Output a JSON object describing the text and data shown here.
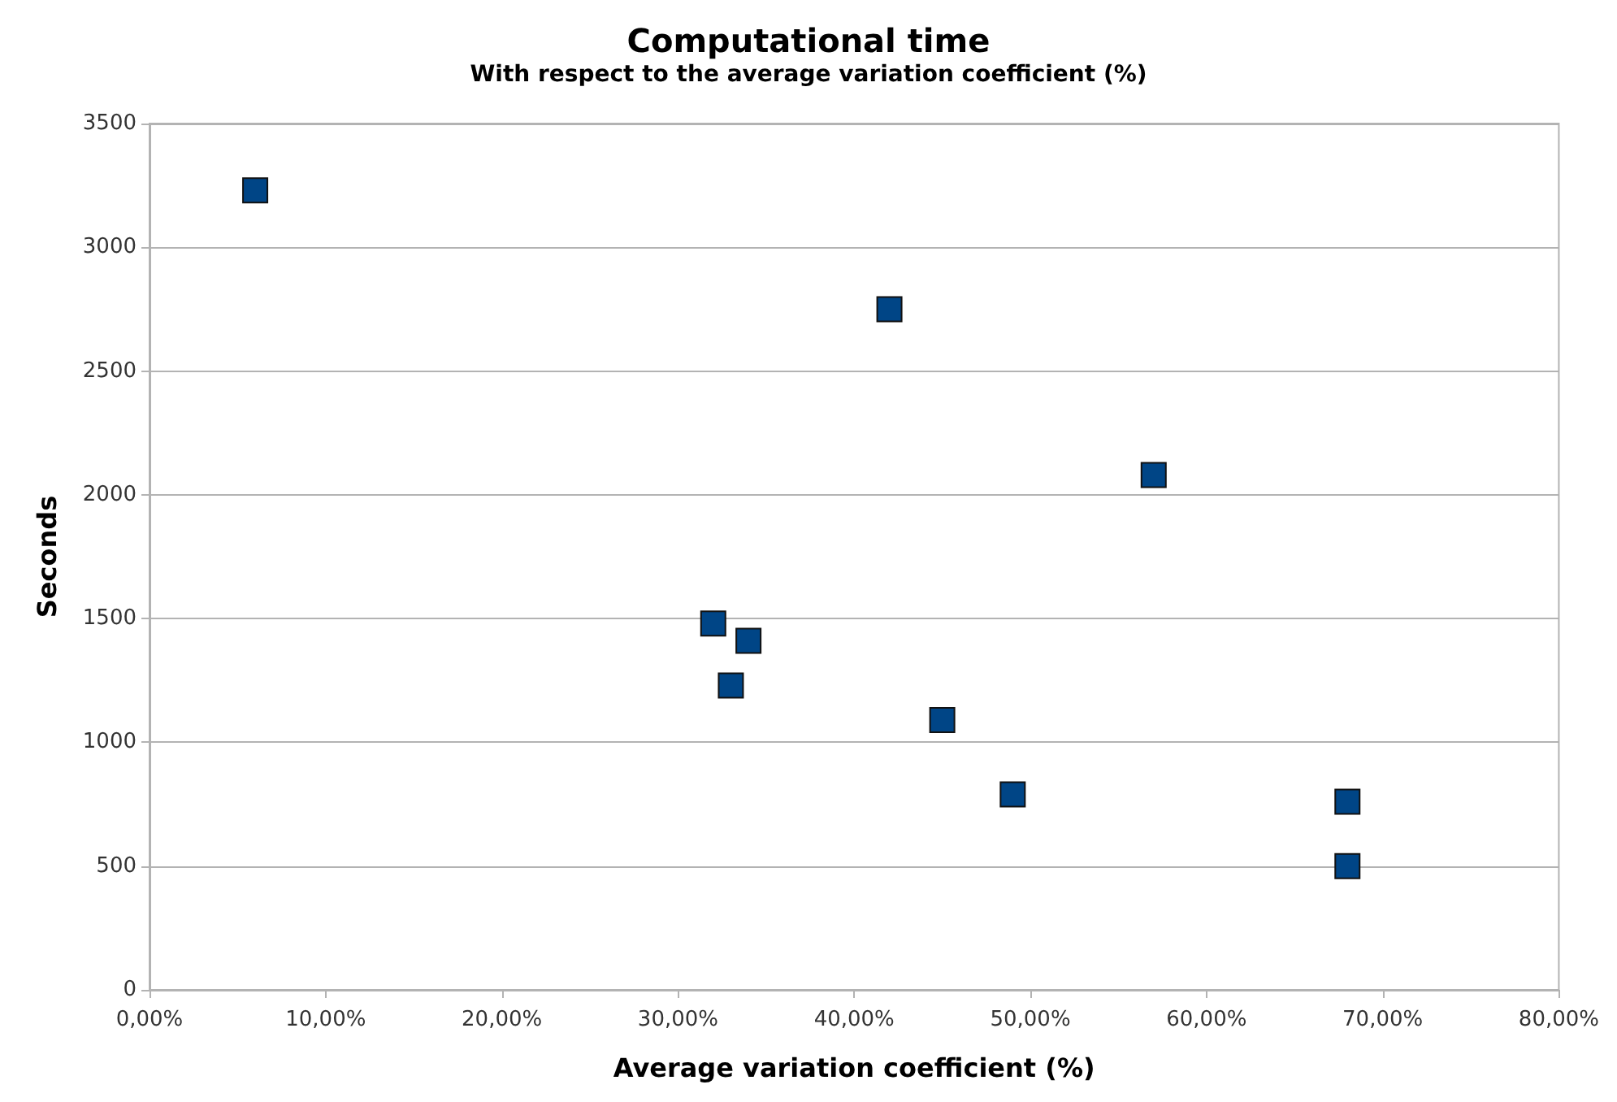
{
  "chart_data": {
    "type": "scatter",
    "title": "Computational time",
    "subtitle": "With respect to the average variation coefficient (%)",
    "xlabel": "Average variation coefficient (%)",
    "ylabel": "Seconds",
    "x": [
      6,
      42,
      57,
      32,
      34,
      33,
      45,
      49,
      68,
      68
    ],
    "series": [
      {
        "color": "#004586",
        "values": [
          3230,
          2750,
          2080,
          1480,
          1410,
          1230,
          1090,
          790,
          760,
          500
        ]
      }
    ],
    "xlim": [
      0,
      80
    ],
    "xticks": [
      {
        "value": 0,
        "label": "0,00%"
      },
      {
        "value": 10,
        "label": "10,00%"
      },
      {
        "value": 20,
        "label": "20,00%"
      },
      {
        "value": 30,
        "label": "30,00%"
      },
      {
        "value": 40,
        "label": "40,00%"
      },
      {
        "value": 50,
        "label": "50,00%"
      },
      {
        "value": 60,
        "label": "60,00%"
      },
      {
        "value": 70,
        "label": "70,00%"
      },
      {
        "value": 80,
        "label": "80,00%"
      }
    ],
    "ylim": [
      0,
      3500
    ],
    "yticks": [
      0,
      500,
      1000,
      1500,
      2000,
      2500,
      3000,
      3500
    ],
    "grid": "y",
    "marker": "square"
  }
}
